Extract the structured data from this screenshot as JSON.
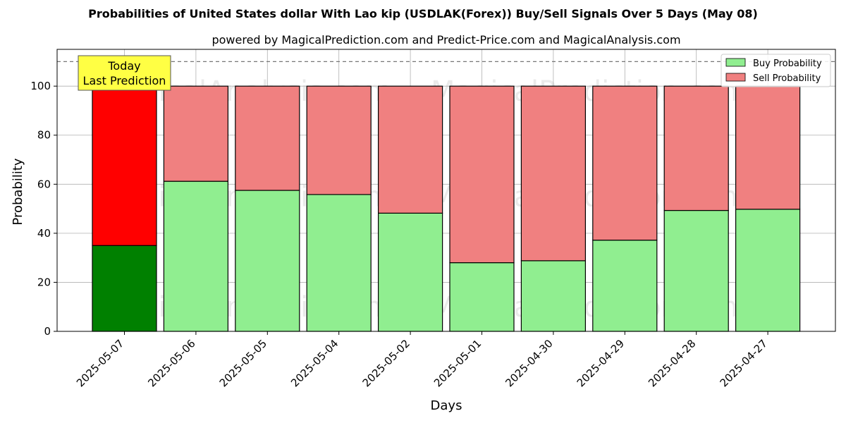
{
  "chart_data": {
    "type": "bar",
    "stacked": true,
    "title": "Probabilities of United States dollar With Lao kip (USDLAK(Forex)) Buy/Sell Signals Over 5 Days (May 08)",
    "subtitle": "powered by MagicalPrediction.com and Predict-Price.com and MagicalAnalysis.com",
    "xlabel": "Days",
    "ylabel": "Probability",
    "ylim": [
      0,
      115
    ],
    "yticks": [
      0,
      20,
      40,
      60,
      80,
      100
    ],
    "reference_line": 110,
    "grid": true,
    "legend_position": "top-right",
    "categories": [
      "2025-05-07",
      "2025-05-06",
      "2025-05-05",
      "2025-05-04",
      "2025-05-02",
      "2025-05-01",
      "2025-04-30",
      "2025-04-29",
      "2025-04-28",
      "2025-04-27"
    ],
    "series": [
      {
        "name": "Buy Probability",
        "color": "#90ee90",
        "highlight_color": "#008000",
        "values": [
          35,
          61.2,
          57.5,
          55.8,
          48.2,
          28,
          28.8,
          37.2,
          49.3,
          49.8
        ]
      },
      {
        "name": "Sell Probability",
        "color": "#f08080",
        "highlight_color": "#ff0000",
        "values": [
          65,
          38.8,
          42.5,
          44.2,
          51.8,
          72,
          71.2,
          62.8,
          50.7,
          50.2
        ]
      }
    ],
    "highlight_index": 0,
    "annotation": {
      "lines": [
        "Today",
        "Last Prediction"
      ],
      "background": "#ffff44"
    },
    "watermarks": [
      "MagicalAnalysis.com",
      "MagicalPrediction.com"
    ]
  }
}
